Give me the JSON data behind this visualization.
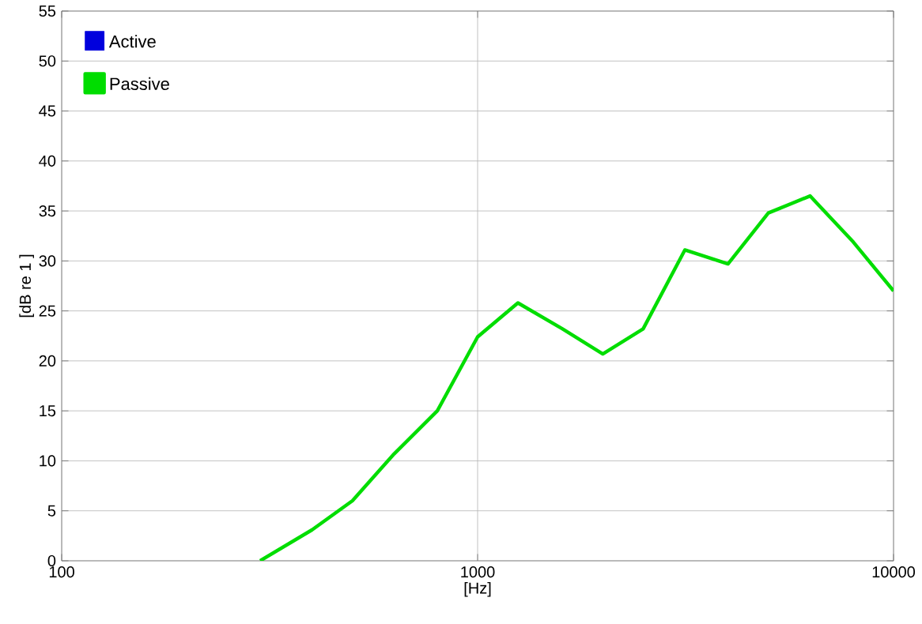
{
  "chart_data": {
    "type": "line",
    "xlabel": "[Hz]",
    "ylabel": "[dB re 1 ]",
    "log": "x",
    "xlim": [
      100,
      10000
    ],
    "xticks": [
      100,
      1000,
      10000
    ],
    "ylim": [
      0,
      55
    ],
    "yticks": [
      0,
      5,
      10,
      15,
      20,
      25,
      30,
      35,
      40,
      45,
      50,
      55
    ],
    "grid": true,
    "legend": "top left",
    "marker": "none",
    "line_style": "solid",
    "x": [
      300,
      400,
      500,
      630,
      800,
      1000,
      1250,
      1600,
      2000,
      2500,
      3150,
      4000,
      5000,
      6300,
      8000,
      10000
    ],
    "series": [
      {
        "name": "Active",
        "color": "#0000dd",
        "values": [
          null,
          null,
          null,
          null,
          null,
          null,
          null,
          null,
          null,
          null,
          null,
          null,
          null,
          null,
          null,
          null
        ]
      },
      {
        "name": "Passive",
        "color": "#00dd00",
        "values": [
          0,
          3.1,
          6.0,
          10.7,
          15.0,
          22.4,
          25.8,
          23.2,
          20.7,
          23.2,
          31.1,
          29.7,
          34.8,
          36.5,
          31.9,
          27.0
        ]
      }
    ]
  }
}
